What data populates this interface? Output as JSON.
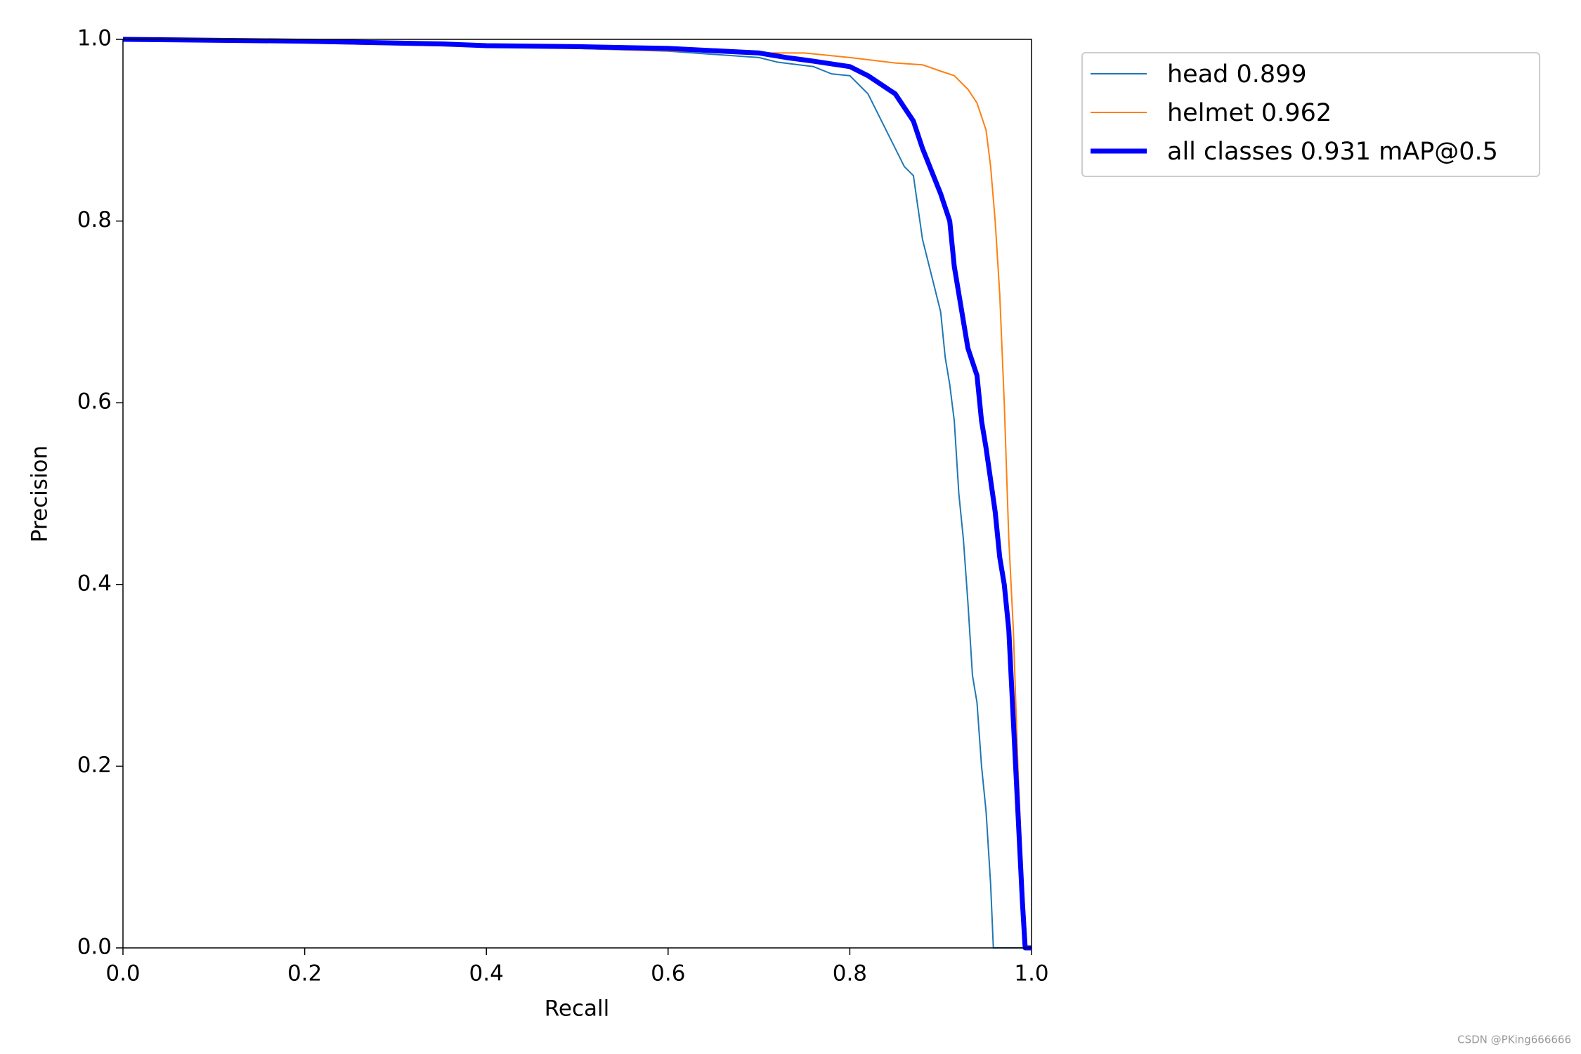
{
  "chart_data": {
    "type": "line",
    "xlabel": "Recall",
    "ylabel": "Precision",
    "xlim": [
      0,
      1
    ],
    "ylim": [
      0,
      1
    ],
    "xticks": [
      {
        "value": 0,
        "label": "0.0"
      },
      0.2,
      0.4,
      0.6,
      0.8,
      {
        "value": 1,
        "label": "1.0"
      }
    ],
    "yticks": [
      {
        "value": 0,
        "label": "0.0"
      },
      0.2,
      0.4,
      0.6,
      0.8,
      {
        "value": 1,
        "label": "1.0"
      }
    ],
    "grid": false,
    "legend": "outside upper right",
    "series": [
      {
        "name": "head 0.899",
        "color": "#1f77b4",
        "linewidth": 2,
        "x": [
          0,
          0.2,
          0.35,
          0.5,
          0.6,
          0.7,
          0.72,
          0.76,
          0.78,
          0.8,
          0.82,
          0.84,
          0.86,
          0.87,
          0.88,
          0.89,
          0.9,
          0.905,
          0.91,
          0.915,
          0.92,
          0.925,
          0.93,
          0.935,
          0.94,
          0.945,
          0.95,
          0.955,
          0.958,
          1.0
        ],
        "values": [
          1,
          1,
          0.995,
          0.99,
          0.987,
          0.98,
          0.975,
          0.97,
          0.962,
          0.96,
          0.94,
          0.9,
          0.86,
          0.85,
          0.78,
          0.74,
          0.7,
          0.65,
          0.62,
          0.58,
          0.5,
          0.45,
          0.38,
          0.3,
          0.27,
          0.2,
          0.15,
          0.07,
          0,
          0
        ]
      },
      {
        "name": "helmet 0.962",
        "color": "#ff7f0e",
        "linewidth": 2,
        "x": [
          0,
          0.5,
          0.7,
          0.75,
          0.8,
          0.85,
          0.88,
          0.9,
          0.915,
          0.93,
          0.94,
          0.95,
          0.955,
          0.96,
          0.965,
          0.97,
          0.975,
          0.98,
          0.985,
          0.99,
          0.995
        ],
        "values": [
          1,
          0.99,
          0.985,
          0.985,
          0.98,
          0.974,
          0.972,
          0.965,
          0.96,
          0.945,
          0.93,
          0.9,
          0.86,
          0.8,
          0.72,
          0.6,
          0.45,
          0.35,
          0.2,
          0.08,
          0
        ]
      },
      {
        "name": "all classes 0.931 mAP@0.5",
        "color": "#0000ff",
        "linewidth": 7,
        "x": [
          0,
          0.2,
          0.35,
          0.4,
          0.5,
          0.6,
          0.7,
          0.73,
          0.76,
          0.8,
          0.82,
          0.85,
          0.87,
          0.88,
          0.9,
          0.91,
          0.915,
          0.92,
          0.93,
          0.94,
          0.945,
          0.95,
          0.96,
          0.965,
          0.97,
          0.975,
          0.98,
          0.985,
          0.99,
          0.993,
          1.0
        ],
        "values": [
          1,
          0.998,
          0.995,
          0.993,
          0.992,
          0.99,
          0.985,
          0.98,
          0.976,
          0.97,
          0.96,
          0.94,
          0.91,
          0.88,
          0.83,
          0.8,
          0.75,
          0.72,
          0.66,
          0.63,
          0.58,
          0.55,
          0.48,
          0.43,
          0.4,
          0.35,
          0.25,
          0.15,
          0.05,
          0,
          0
        ]
      }
    ]
  },
  "watermark": "CSDN @PKing666666"
}
